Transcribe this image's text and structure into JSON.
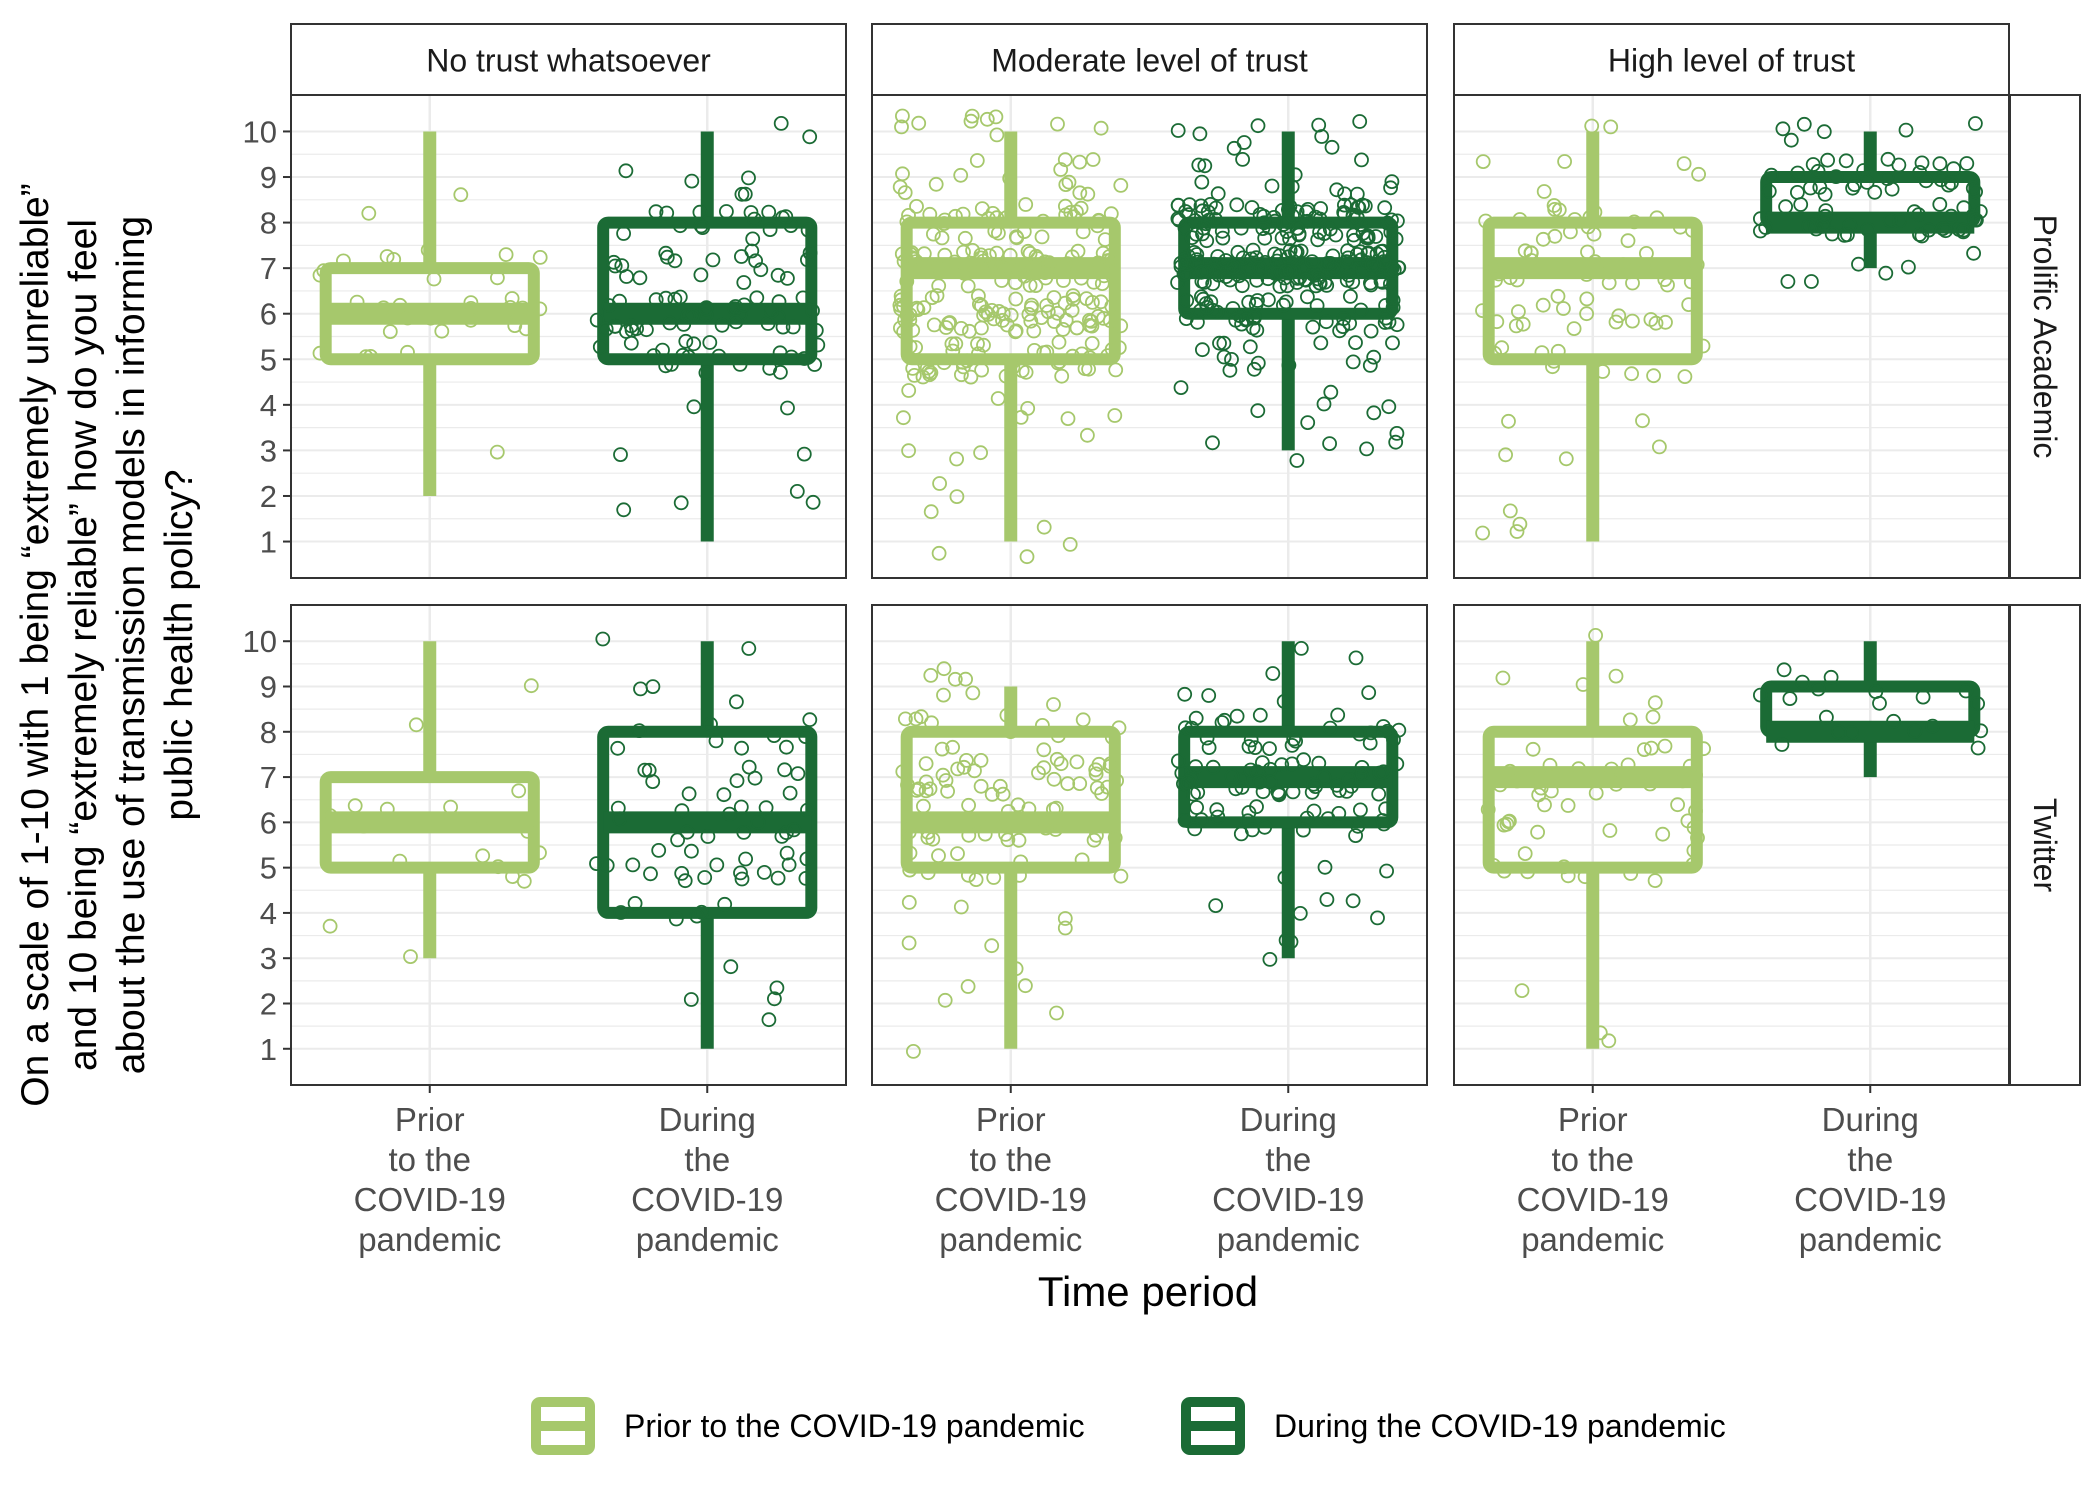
{
  "chart_data": {
    "type": "boxplot",
    "xlabel": "Time period",
    "ylabel_lines": [
      "On a scale of 1-10 with 1 being “extremely unreliable”",
      "and 10 being “extremely reliable” how do you feel",
      "about the use of transmission models in informing",
      "public health policy?"
    ],
    "ylim": [
      0.2,
      10.8
    ],
    "yticks": [
      "1",
      "2",
      "3",
      "4",
      "5",
      "6",
      "7",
      "8",
      "9",
      "10"
    ],
    "categories": [
      "Prior to the COVID-19 pandemic",
      "During the COVID-19 pandemic"
    ],
    "category_label_lines": [
      [
        "Prior",
        "to the",
        "COVID-19",
        "pandemic"
      ],
      [
        "During",
        "the",
        "COVID-19",
        "pandemic"
      ]
    ],
    "col_facets": [
      "No trust whatsoever",
      "Moderate level of trust",
      "High level of trust"
    ],
    "row_facets": [
      "Prolific Academic",
      "Twitter"
    ],
    "legend": {
      "position": "bottom",
      "entries": [
        "Prior to the COVID-19 pandemic",
        "During the COVID-19 pandemic"
      ]
    },
    "colors": {
      "prior": "#a6c86c",
      "during": "#1b6b35",
      "grid": "#ebebeb",
      "border": "#333333",
      "strip_fill": "#ffffff"
    },
    "panels": [
      {
        "row": "Prolific Academic",
        "col": "No trust whatsoever",
        "series": [
          {
            "name": "Prior to the COVID-19 pandemic",
            "min": 2,
            "q1": 5,
            "median": 6,
            "q3": 7,
            "max": 10,
            "n": 35
          },
          {
            "name": "During the COVID-19 pandemic",
            "min": 1,
            "q1": 5,
            "median": 6,
            "q3": 8,
            "max": 10,
            "n": 110
          }
        ]
      },
      {
        "row": "Prolific Academic",
        "col": "Moderate level of trust",
        "series": [
          {
            "name": "Prior to the COVID-19 pandemic",
            "min": 1,
            "q1": 5,
            "median": 7,
            "q3": 8,
            "max": 10,
            "n": 260
          },
          {
            "name": "During the COVID-19 pandemic",
            "min": 3,
            "q1": 6,
            "median": 7,
            "q3": 8,
            "max": 10,
            "n": 300
          }
        ]
      },
      {
        "row": "Prolific Academic",
        "col": "High level of trust",
        "series": [
          {
            "name": "Prior to the COVID-19 pandemic",
            "min": 1,
            "q1": 5,
            "median": 7,
            "q3": 8,
            "max": 10,
            "n": 90
          },
          {
            "name": "During the COVID-19 pandemic",
            "min": 7,
            "q1": 8,
            "median": 8,
            "q3": 9,
            "max": 10,
            "n": 80
          }
        ]
      },
      {
        "row": "Twitter",
        "col": "No trust whatsoever",
        "series": [
          {
            "name": "Prior to the COVID-19 pandemic",
            "min": 3,
            "q1": 5,
            "median": 6,
            "q3": 7,
            "max": 10,
            "n": 20
          },
          {
            "name": "During the COVID-19 pandemic",
            "min": 1,
            "q1": 4,
            "median": 6,
            "q3": 8,
            "max": 10,
            "n": 70
          }
        ]
      },
      {
        "row": "Twitter",
        "col": "Moderate level of trust",
        "series": [
          {
            "name": "Prior to the COVID-19 pandemic",
            "min": 1,
            "q1": 5,
            "median": 6,
            "q3": 8,
            "max": 9,
            "n": 110
          },
          {
            "name": "During the COVID-19 pandemic",
            "min": 3,
            "q1": 6,
            "median": 7,
            "q3": 8,
            "max": 10,
            "n": 110
          }
        ]
      },
      {
        "row": "Twitter",
        "col": "High level of trust",
        "series": [
          {
            "name": "Prior to the COVID-19 pandemic",
            "min": 1,
            "q1": 5,
            "median": 7,
            "q3": 8,
            "max": 10,
            "n": 60
          },
          {
            "name": "During the COVID-19 pandemic",
            "min": 7,
            "q1": 8,
            "median": 8,
            "q3": 9,
            "max": 10,
            "n": 20
          }
        ]
      }
    ]
  }
}
